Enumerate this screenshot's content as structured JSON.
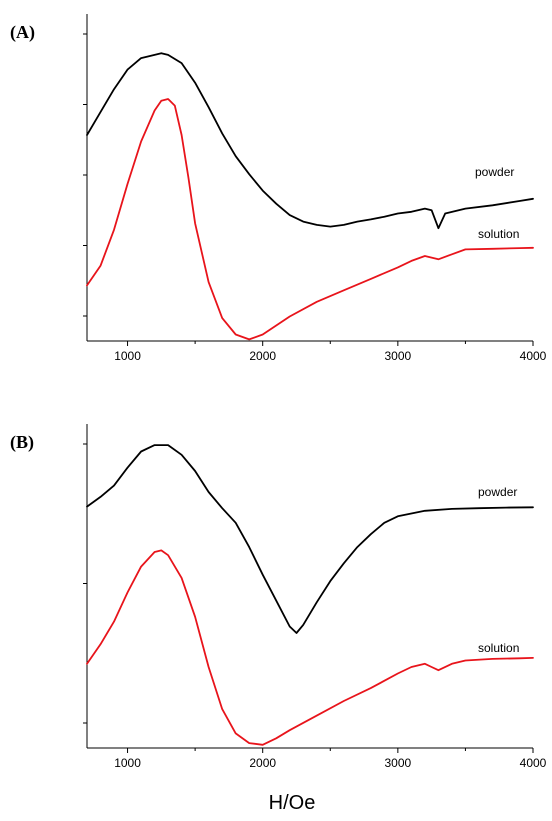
{
  "chart_data": [
    {
      "type": "line",
      "panel_label": "(A)",
      "xlabel": "",
      "ylabel": "",
      "xlim": [
        700,
        4000
      ],
      "ylim": [
        0,
        10
      ],
      "x_ticks": [
        1000,
        2000,
        3000,
        4000
      ],
      "x_tick_labels": [
        "1000",
        "2000",
        "3000",
        "4000"
      ],
      "y_ticks_count": 5,
      "grid": false,
      "series": [
        {
          "name": "powder",
          "color": "#000000",
          "points": [
            [
              700,
              6.3
            ],
            [
              800,
              7.0
            ],
            [
              900,
              7.7
            ],
            [
              1000,
              8.3
            ],
            [
              1100,
              8.65
            ],
            [
              1200,
              8.75
            ],
            [
              1250,
              8.8
            ],
            [
              1300,
              8.75
            ],
            [
              1400,
              8.5
            ],
            [
              1500,
              7.9
            ],
            [
              1600,
              7.15
            ],
            [
              1700,
              6.35
            ],
            [
              1800,
              5.65
            ],
            [
              1900,
              5.1
            ],
            [
              2000,
              4.6
            ],
            [
              2100,
              4.2
            ],
            [
              2200,
              3.85
            ],
            [
              2300,
              3.65
            ],
            [
              2400,
              3.55
            ],
            [
              2500,
              3.5
            ],
            [
              2600,
              3.55
            ],
            [
              2700,
              3.65
            ],
            [
              2800,
              3.72
            ],
            [
              2900,
              3.8
            ],
            [
              3000,
              3.9
            ],
            [
              3100,
              3.95
            ],
            [
              3200,
              4.05
            ],
            [
              3250,
              4.0
            ],
            [
              3300,
              3.45
            ],
            [
              3350,
              3.9
            ],
            [
              3500,
              4.05
            ],
            [
              3700,
              4.15
            ],
            [
              3900,
              4.28
            ],
            [
              4000,
              4.35
            ]
          ]
        },
        {
          "name": "solution",
          "color": "#e8141b",
          "points": [
            [
              700,
              1.7
            ],
            [
              800,
              2.3
            ],
            [
              900,
              3.4
            ],
            [
              1000,
              4.8
            ],
            [
              1100,
              6.1
            ],
            [
              1200,
              7.05
            ],
            [
              1250,
              7.35
            ],
            [
              1300,
              7.4
            ],
            [
              1350,
              7.2
            ],
            [
              1400,
              6.3
            ],
            [
              1450,
              5.0
            ],
            [
              1500,
              3.6
            ],
            [
              1600,
              1.8
            ],
            [
              1700,
              0.7
            ],
            [
              1800,
              0.2
            ],
            [
              1900,
              0.05
            ],
            [
              2000,
              0.2
            ],
            [
              2200,
              0.75
            ],
            [
              2400,
              1.2
            ],
            [
              2600,
              1.55
            ],
            [
              2800,
              1.9
            ],
            [
              3000,
              2.25
            ],
            [
              3100,
              2.45
            ],
            [
              3200,
              2.6
            ],
            [
              3250,
              2.55
            ],
            [
              3300,
              2.5
            ],
            [
              3400,
              2.65
            ],
            [
              3500,
              2.8
            ],
            [
              3700,
              2.82
            ],
            [
              3900,
              2.84
            ],
            [
              4000,
              2.85
            ]
          ]
        }
      ]
    },
    {
      "type": "line",
      "panel_label": "(B)",
      "xlabel": "H/Oe",
      "ylabel": "",
      "xlim": [
        700,
        4000
      ],
      "ylim": [
        0,
        10
      ],
      "x_ticks": [
        1000,
        2000,
        3000,
        4000
      ],
      "x_tick_labels": [
        "1000",
        "2000",
        "3000",
        "4000"
      ],
      "y_ticks_count": 3,
      "grid": false,
      "series": [
        {
          "name": "powder",
          "color": "#000000",
          "points": [
            [
              700,
              7.45
            ],
            [
              800,
              7.75
            ],
            [
              900,
              8.1
            ],
            [
              1000,
              8.65
            ],
            [
              1100,
              9.15
            ],
            [
              1200,
              9.35
            ],
            [
              1300,
              9.35
            ],
            [
              1400,
              9.05
            ],
            [
              1500,
              8.55
            ],
            [
              1600,
              7.9
            ],
            [
              1700,
              7.4
            ],
            [
              1800,
              6.95
            ],
            [
              1900,
              6.2
            ],
            [
              2000,
              5.35
            ],
            [
              2100,
              4.55
            ],
            [
              2200,
              3.75
            ],
            [
              2250,
              3.55
            ],
            [
              2300,
              3.8
            ],
            [
              2400,
              4.5
            ],
            [
              2500,
              5.15
            ],
            [
              2600,
              5.7
            ],
            [
              2700,
              6.2
            ],
            [
              2800,
              6.6
            ],
            [
              2900,
              6.95
            ],
            [
              3000,
              7.15
            ],
            [
              3200,
              7.32
            ],
            [
              3400,
              7.38
            ],
            [
              3600,
              7.4
            ],
            [
              3800,
              7.42
            ],
            [
              4000,
              7.43
            ]
          ]
        },
        {
          "name": "solution",
          "color": "#e8141b",
          "points": [
            [
              700,
              2.6
            ],
            [
              800,
              3.2
            ],
            [
              900,
              3.9
            ],
            [
              1000,
              4.8
            ],
            [
              1100,
              5.6
            ],
            [
              1200,
              6.05
            ],
            [
              1250,
              6.1
            ],
            [
              1300,
              5.95
            ],
            [
              1400,
              5.25
            ],
            [
              1500,
              4.05
            ],
            [
              1600,
              2.5
            ],
            [
              1700,
              1.2
            ],
            [
              1800,
              0.45
            ],
            [
              1900,
              0.15
            ],
            [
              2000,
              0.1
            ],
            [
              2100,
              0.3
            ],
            [
              2200,
              0.55
            ],
            [
              2400,
              1.0
            ],
            [
              2600,
              1.45
            ],
            [
              2800,
              1.85
            ],
            [
              3000,
              2.3
            ],
            [
              3100,
              2.5
            ],
            [
              3200,
              2.6
            ],
            [
              3250,
              2.5
            ],
            [
              3300,
              2.4
            ],
            [
              3400,
              2.6
            ],
            [
              3500,
              2.7
            ],
            [
              3700,
              2.75
            ],
            [
              3900,
              2.77
            ],
            [
              4000,
              2.78
            ]
          ]
        }
      ]
    }
  ]
}
